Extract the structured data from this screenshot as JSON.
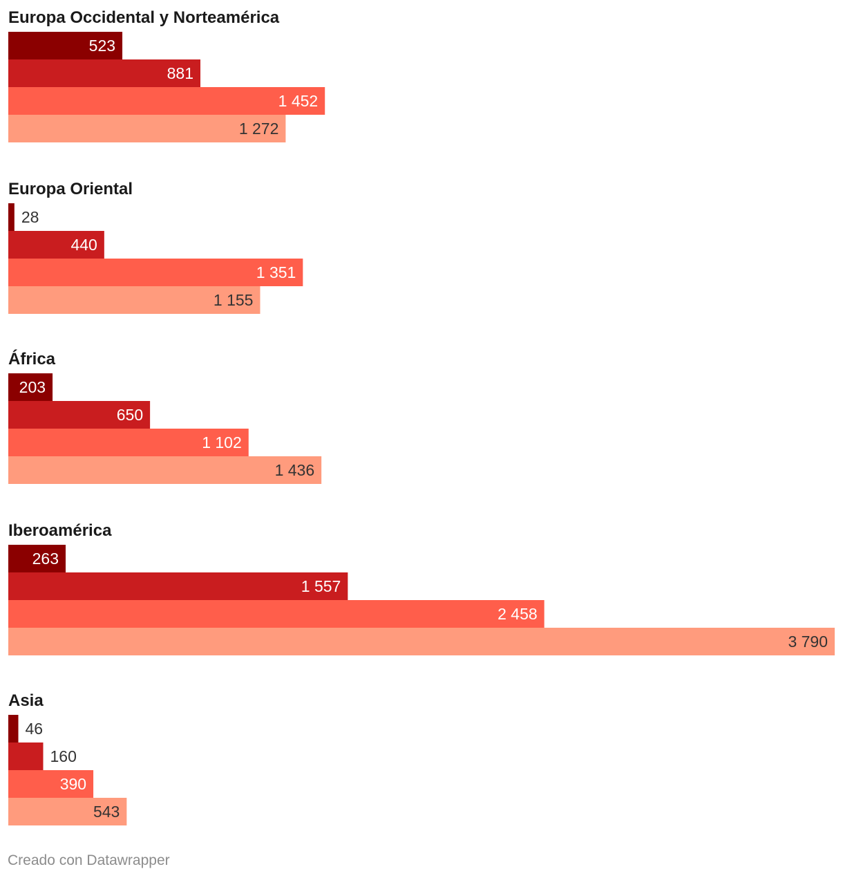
{
  "chart_data": {
    "type": "bar",
    "orientation": "horizontal-grouped",
    "series_colors": [
      "#8b0000",
      "#c91d1f",
      "#ff5e4b",
      "#ff9b7d"
    ],
    "groups": [
      {
        "title": "Europa Occidental y Norteamérica",
        "values": [
          523,
          881,
          1452,
          1272
        ],
        "labels": [
          "523",
          "881",
          "1 452",
          "1 272"
        ]
      },
      {
        "title": "Europa Oriental",
        "values": [
          28,
          440,
          1351,
          1155
        ],
        "labels": [
          "28",
          "440",
          "1 351",
          "1 155"
        ]
      },
      {
        "title": "África",
        "values": [
          203,
          650,
          1102,
          1436
        ],
        "labels": [
          "203",
          "650",
          "1 102",
          "1 436"
        ]
      },
      {
        "title": "Iberoamérica",
        "values": [
          263,
          1557,
          2458,
          3790
        ],
        "labels": [
          "263",
          "1 557",
          "2 458",
          "3 790"
        ]
      },
      {
        "title": "Asia",
        "values": [
          46,
          160,
          390,
          543
        ],
        "labels": [
          "46",
          "160",
          "390",
          "543"
        ]
      }
    ],
    "xlim": [
      0,
      3790
    ]
  },
  "credit": "Creado con Datawrapper"
}
